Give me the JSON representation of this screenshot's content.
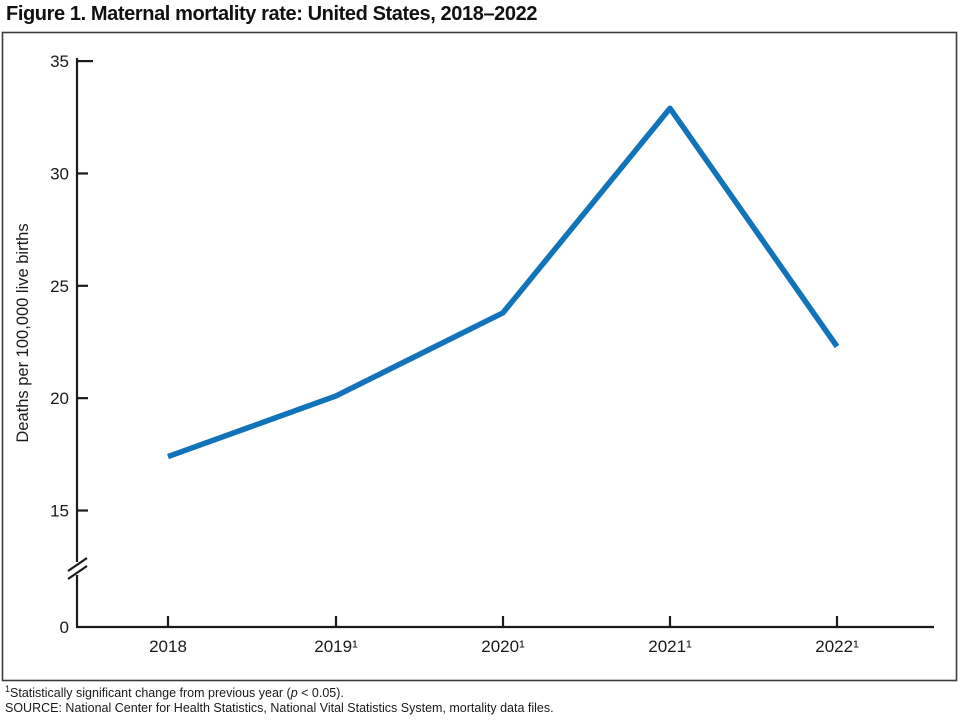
{
  "title": "Figure 1. Maternal mortality rate: United States, 2018–2022",
  "chart_data": {
    "type": "line",
    "title": "Figure 1. Maternal mortality rate: United States, 2018–2022",
    "categories": [
      "2018",
      "2019",
      "2020",
      "2021",
      "2022"
    ],
    "x_tick_labels": [
      "2018",
      "2019¹",
      "2020¹",
      "2021¹",
      "2022¹"
    ],
    "series": [
      {
        "name": "Maternal mortality rate",
        "values": [
          17.4,
          20.1,
          23.8,
          32.9,
          22.3
        ]
      }
    ],
    "xlabel": "",
    "ylabel": "Deaths per 100,000 live births",
    "y_ticks": [
      0,
      15,
      20,
      25,
      30,
      35
    ],
    "ylim": [
      0,
      35
    ],
    "axis_break_between": [
      0,
      15
    ],
    "grid": false,
    "legend": "none",
    "line_color": "#1173B9",
    "axis_color": "#1a1a1a",
    "frame_color": "#3d3d3d"
  },
  "footnotes": {
    "note1_sup": "1",
    "note1_prefix": "Statistically significant change from previous year (",
    "note1_italic": "p",
    "note1_suffix": " < 0.05).",
    "source": "SOURCE: National Center for Health Statistics, National Vital Statistics System, mortality data files."
  }
}
